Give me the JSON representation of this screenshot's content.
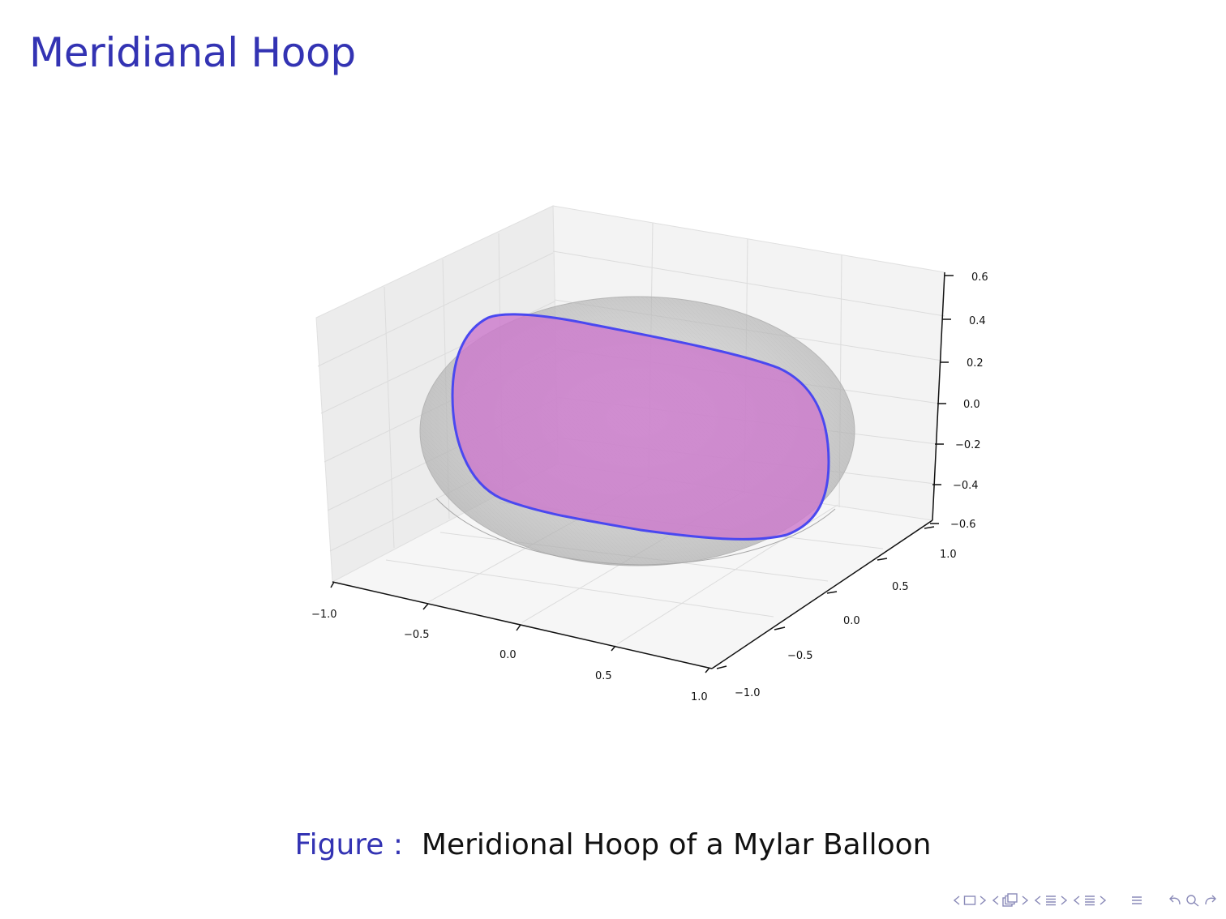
{
  "slide": {
    "title": "Meridianal Hoop",
    "caption_label": "Figure :",
    "caption_text": "Meridional Hoop of a Mylar Balloon"
  },
  "figure": {
    "x_ticks": [
      "−1.0",
      "−0.5",
      "0.0",
      "0.5",
      "1.0"
    ],
    "y_ticks": [
      "−1.0",
      "−0.5",
      "0.0",
      "0.5",
      "1.0"
    ],
    "z_ticks": [
      "0.6",
      "0.4",
      "0.2",
      "0.0",
      "−0.2",
      "−0.4",
      "−0.6"
    ],
    "colors": {
      "surface": "#bdbdbd",
      "hoop_fill": "#cc7acc",
      "hoop_edge": "#4a48f0",
      "pane": "#f2f2f2"
    }
  },
  "navigation": {
    "icons": [
      "frame-prev-icon",
      "frame-icon",
      "frame-next-icon",
      "subsection-prev-icon",
      "subsection-icon",
      "subsection-next-icon",
      "section-prev-icon",
      "section-icon",
      "section-next-icon",
      "doc-prev-icon",
      "doc-icon",
      "doc-next-icon",
      "align-icon",
      "back-icon",
      "search-icon",
      "forward-icon"
    ]
  }
}
